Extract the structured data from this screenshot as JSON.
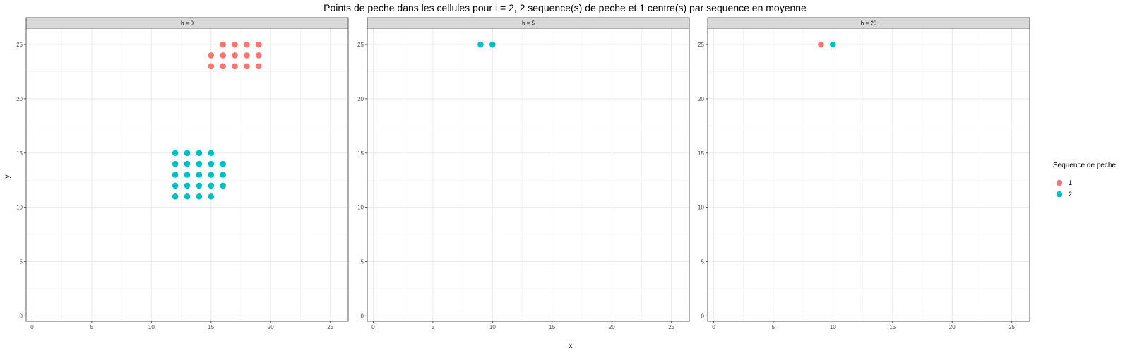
{
  "chart_data": {
    "type": "scatter",
    "title": "Points de peche dans les cellules pour i = 2, 2 sequence(s) de peche et 1 centre(s) par sequence en moyenne",
    "xlabel": "x",
    "ylabel": "y",
    "xlim": [
      -0.5,
      26.5
    ],
    "ylim": [
      -0.5,
      26.5
    ],
    "x_ticks": [
      0,
      5,
      10,
      15,
      20,
      25
    ],
    "y_ticks": [
      0,
      5,
      10,
      15,
      20,
      25
    ],
    "grid": true,
    "legend": {
      "title": "Sequence de peche",
      "position": "right",
      "entries": [
        {
          "label": "1",
          "color": "#F8766D"
        },
        {
          "label": "2",
          "color": "#00BFC4"
        }
      ]
    },
    "facets": [
      {
        "label": "b = 0",
        "series": [
          {
            "name": "1",
            "color": "#F8766D",
            "points": [
              [
                16,
                25
              ],
              [
                17,
                25
              ],
              [
                18,
                25
              ],
              [
                19,
                25
              ],
              [
                15,
                24
              ],
              [
                16,
                24
              ],
              [
                17,
                24
              ],
              [
                18,
                24
              ],
              [
                19,
                24
              ],
              [
                15,
                23
              ],
              [
                16,
                23
              ],
              [
                17,
                23
              ],
              [
                18,
                23
              ],
              [
                19,
                23
              ]
            ]
          },
          {
            "name": "2",
            "color": "#00BFC4",
            "points": [
              [
                12,
                15
              ],
              [
                13,
                15
              ],
              [
                14,
                15
              ],
              [
                15,
                15
              ],
              [
                12,
                14
              ],
              [
                13,
                14
              ],
              [
                14,
                14
              ],
              [
                15,
                14
              ],
              [
                16,
                14
              ],
              [
                12,
                13
              ],
              [
                13,
                13
              ],
              [
                14,
                13
              ],
              [
                15,
                13
              ],
              [
                16,
                13
              ],
              [
                12,
                12
              ],
              [
                13,
                12
              ],
              [
                14,
                12
              ],
              [
                15,
                12
              ],
              [
                16,
                12
              ],
              [
                12,
                11
              ],
              [
                13,
                11
              ],
              [
                14,
                11
              ],
              [
                15,
                11
              ]
            ]
          }
        ]
      },
      {
        "label": "b = 5",
        "series": [
          {
            "name": "1",
            "color": "#F8766D",
            "points": []
          },
          {
            "name": "2",
            "color": "#00BFC4",
            "points": [
              [
                9,
                25
              ],
              [
                10,
                25
              ]
            ]
          }
        ]
      },
      {
        "label": "b = 20",
        "series": [
          {
            "name": "1",
            "color": "#F8766D",
            "points": [
              [
                9,
                25
              ]
            ]
          },
          {
            "name": "2",
            "color": "#00BFC4",
            "points": [
              [
                10,
                25
              ]
            ]
          }
        ]
      }
    ]
  }
}
